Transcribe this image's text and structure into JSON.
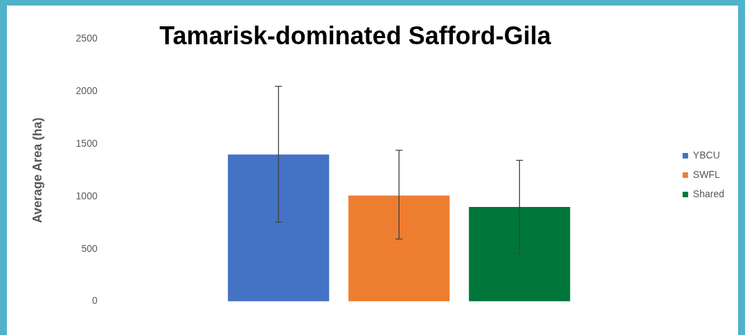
{
  "chart_data": {
    "type": "bar",
    "title": "Tamarisk-dominated Safford-Gila",
    "ylabel": "Average Area (ha)",
    "categories": [
      null
    ],
    "series": [
      {
        "name": "YBCU",
        "color": "#4472c4",
        "values": [
          1400
        ],
        "errors": [
          [
            755,
            2050
          ]
        ]
      },
      {
        "name": "SWFL",
        "color": "#ed7d31",
        "values": [
          1010
        ],
        "errors": [
          [
            595,
            1440
          ]
        ]
      },
      {
        "name": "Shared",
        "color": "#00773a",
        "values": [
          900
        ],
        "errors": [
          [
            455,
            1345
          ]
        ]
      }
    ],
    "ylim": [
      0,
      2500
    ],
    "yticks": [
      0,
      500,
      1000,
      1500,
      2000,
      2500
    ],
    "grid": false,
    "legend": "right"
  }
}
